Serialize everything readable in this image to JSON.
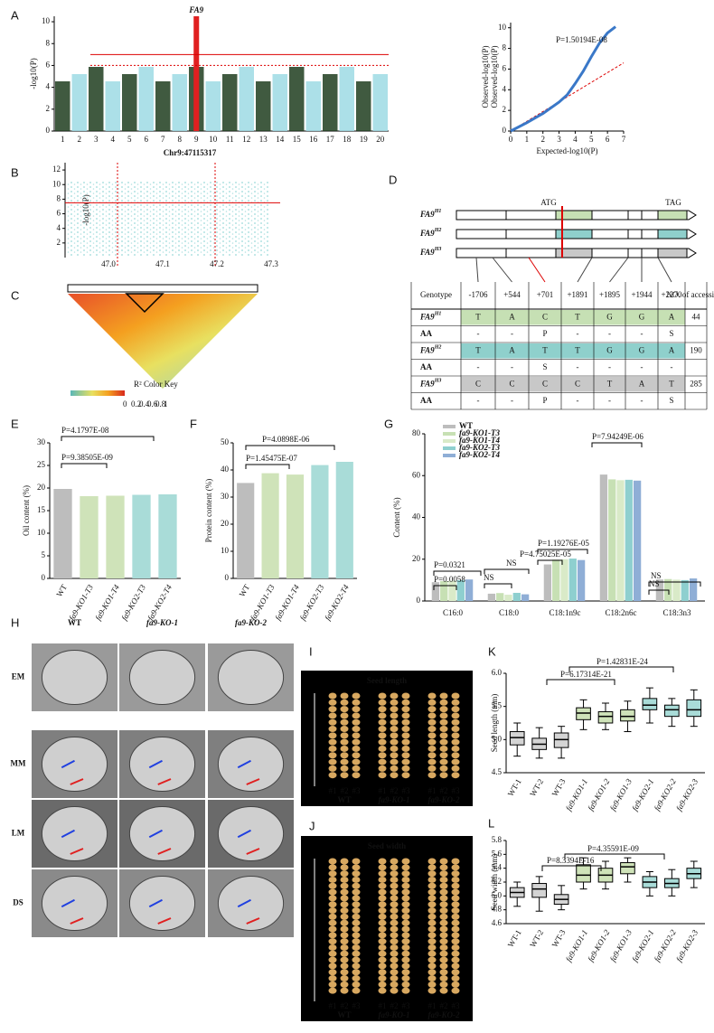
{
  "panel_labels": [
    "A",
    "B",
    "C",
    "D",
    "E",
    "F",
    "G",
    "H",
    "I",
    "J",
    "K",
    "L"
  ],
  "manhattan": {
    "gene": "FA9",
    "ylabel": "-log10(P)",
    "ylim": [
      0,
      10.5
    ],
    "yticks": [
      0,
      2,
      4,
      6,
      8,
      10
    ],
    "chromosomes": [
      "1",
      "2",
      "3",
      "4",
      "5",
      "6",
      "7",
      "8",
      "9",
      "10",
      "11",
      "12",
      "13",
      "14",
      "15",
      "16",
      "17",
      "18",
      "19",
      "20"
    ],
    "position": "Chr9:47115317",
    "thresholds": [
      7,
      6
    ]
  },
  "qq": {
    "annotation": "P=1.50194E-08",
    "xlabel": "Expected-log10(P)",
    "ylabel": "Observed-log10(P)",
    "xlim": [
      0,
      7
    ],
    "ylim": [
      0,
      10.5
    ],
    "xticks": [
      0,
      1,
      2,
      3,
      4,
      5,
      6,
      7
    ],
    "yticks": [
      0,
      2,
      4,
      6,
      8,
      10
    ],
    "x": [
      0,
      1,
      2,
      3,
      3.5,
      4,
      4.5,
      5,
      5.5,
      6,
      6.5
    ],
    "y": [
      0,
      0.8,
      1.7,
      2.8,
      3.5,
      4.6,
      5.8,
      7.2,
      8.5,
      9.5,
      10.1
    ],
    "expected": {
      "x": [
        0,
        7
      ],
      "y": [
        0,
        6.6
      ]
    }
  },
  "regional": {
    "ylabel": "-log10(P)",
    "ylim": [
      0,
      13
    ],
    "yticks": [
      2,
      4,
      6,
      8,
      10,
      12
    ],
    "xlim": [
      46.92,
      47.3
    ],
    "xticks": [
      {
        "value": 47,
        "label": "47.0"
      },
      47.1,
      47.2,
      47.3
    ],
    "threshold": 7.5
  },
  "ld": {
    "key_title": "R² Color Key",
    "key_ticks": [
      0,
      0.2,
      0.4,
      0.6,
      0.8,
      1
    ]
  },
  "gene_model": {
    "start": "ATG",
    "stop": "TAG",
    "table": {
      "header": [
        "Genotype",
        "-1706",
        "+544",
        "+701",
        "+1891",
        "+1895",
        "+1944",
        "+2270",
        "NO. of accessions"
      ],
      "rows": [
        {
          "name": "FA9",
          "sup": "H1",
          "color": "#c6e0b4",
          "cells": [
            "T",
            "A",
            "C",
            "T",
            "G",
            "G",
            "A"
          ],
          "count": 44
        },
        {
          "name": "AA",
          "cells": [
            "-",
            "-",
            "P",
            "-",
            "-",
            "-",
            "S"
          ]
        },
        {
          "name": "FA9",
          "sup": "H2",
          "color": "#8fd0cc",
          "cells": [
            "T",
            "A",
            "T",
            "T",
            "G",
            "G",
            "A"
          ],
          "count": 190
        },
        {
          "name": "AA",
          "cells": [
            "-",
            "-",
            "S",
            "-",
            "-",
            "-",
            "-"
          ],
          "red_cell": 2
        },
        {
          "name": "FA9",
          "sup": "H3",
          "color": "#c8c8c8",
          "cells": [
            "C",
            "C",
            "C",
            "C",
            "T",
            "A",
            "T"
          ],
          "count": 285
        },
        {
          "name": "AA",
          "cells": [
            "-",
            "-",
            "P",
            "-",
            "-",
            "-",
            "S"
          ]
        }
      ]
    }
  },
  "oil": {
    "type": "bar",
    "ylabel": "Oil content (%)",
    "ylim": [
      0,
      30
    ],
    "yticks": [
      0,
      5,
      10,
      15,
      20,
      25,
      30
    ],
    "categories": [
      "WT",
      "fa9-KO1-T3",
      "fa9-KO1-T4",
      "fa9-KO2-T3",
      "fa9-KO2-T4"
    ],
    "values": [
      19.8,
      18.2,
      18.3,
      18.5,
      18.6
    ],
    "colors": [
      "#bdbdbd",
      "#cfe3b9",
      "#cfe3b9",
      "#a9dcd8",
      "#a9dcd8"
    ],
    "annotations": [
      "P=4.1797E-08",
      "P=9.38505E-09"
    ]
  },
  "protein": {
    "type": "bar",
    "ylabel": "Protein content (%)",
    "ylim": [
      0,
      50
    ],
    "yticks": [
      0,
      10,
      20,
      30,
      40,
      50
    ],
    "categories": [
      "WT",
      "fa9-KO1-T3",
      "fa9-KO1-T4",
      "fa9-KO2-T3",
      "fa9-KO2-T4"
    ],
    "values": [
      35.2,
      38.8,
      38.3,
      41.8,
      43.0
    ],
    "colors": [
      "#bdbdbd",
      "#cfe3b9",
      "#cfe3b9",
      "#a9dcd8",
      "#a9dcd8"
    ],
    "annotations": [
      "P=4.0898E-06",
      "P=1.45475E-07"
    ]
  },
  "fatty": {
    "type": "bar",
    "ylabel": "Content (%)",
    "ylim": [
      0,
      80
    ],
    "yticks": [
      0,
      20,
      40,
      60,
      80
    ],
    "categories": [
      "C16:0",
      "C18:0",
      "C18:1n9c",
      "C18:2n6c",
      "C18:3n3"
    ],
    "series": [
      {
        "name": "WT",
        "color": "#bdbdbd",
        "values": [
          9.0,
          3.5,
          17.5,
          60.5,
          10.3
        ]
      },
      {
        "name": "fa9-KO1-T3",
        "color": "#c7e0b4",
        "values": [
          9.5,
          3.8,
          19.8,
          58.2,
          10.5
        ]
      },
      {
        "name": "fa9-KO1-T4",
        "color": "#d9eac8",
        "values": [
          9.7,
          3.0,
          20.0,
          57.8,
          10.2
        ]
      },
      {
        "name": "fa9-KO2-T3",
        "color": "#8ecfcf",
        "values": [
          10.0,
          3.9,
          20.3,
          58.0,
          10.0
        ]
      },
      {
        "name": "fa9-KO2-T4",
        "color": "#8faed6",
        "values": [
          10.3,
          3.2,
          19.6,
          57.6,
          10.8
        ]
      }
    ],
    "annotations": [
      "P=0.0321",
      "P=0.0058",
      "NS",
      "NS",
      "P=1.19276E-05",
      "P=4.75025E-05",
      "P=7.94249E-06",
      "NS",
      "NS"
    ]
  },
  "tem": {
    "columns": [
      "WT",
      "fa9-KO-1",
      "fa9-KO-2"
    ],
    "rows": [
      "EM",
      "MM",
      "LM",
      "DS"
    ]
  },
  "seed_length_img": {
    "title": "Seed length",
    "lines": [
      "#1",
      "#2",
      "#3"
    ],
    "groups": [
      "WT",
      "fa9-KO-1",
      "fa9-KO-2"
    ]
  },
  "seed_width_img": {
    "title": "Seed width",
    "lines": [
      "#1",
      "#2",
      "#3"
    ],
    "groups": [
      "WT",
      "fa9-KO-1",
      "fa9-KO-2"
    ]
  },
  "length_box": {
    "type": "box",
    "ylabel": "Seed length (mm)",
    "ylim": [
      4.5,
      6.0
    ],
    "yticks": [
      4.5,
      {
        "value": 5,
        "label": "5.0"
      },
      5.5,
      {
        "value": 6,
        "label": "6.0"
      }
    ],
    "categories": [
      "WT-1",
      "WT-2",
      "WT-3",
      "fa9-KO1-1",
      "fa9-KO1-2",
      "fa9-KO1-3",
      "fa9-KO2-1",
      "fa9-KO2-2",
      "fa9-KO2-3"
    ],
    "colors": [
      "#d4d4d4",
      "#d4d4d4",
      "#d4d4d4",
      "#cfe3b9",
      "#cfe3b9",
      "#cfe3b9",
      "#a9dcd8",
      "#a9dcd8",
      "#a9dcd8"
    ],
    "min": [
      4.75,
      4.72,
      4.72,
      5.15,
      5.15,
      5.12,
      5.25,
      5.2,
      5.2
    ],
    "q1": [
      4.92,
      4.85,
      4.88,
      5.3,
      5.25,
      5.28,
      5.45,
      5.35,
      5.35
    ],
    "median": [
      5.03,
      4.93,
      5.0,
      5.4,
      5.35,
      5.35,
      5.52,
      5.45,
      5.45
    ],
    "q3": [
      5.12,
      5.02,
      5.1,
      5.48,
      5.42,
      5.45,
      5.62,
      5.52,
      5.6
    ],
    "max": [
      5.25,
      5.18,
      5.2,
      5.6,
      5.55,
      5.58,
      5.78,
      5.62,
      5.75
    ],
    "annotations": [
      "P=1.42831E-24",
      "P=6.17314E-21"
    ]
  },
  "width_box": {
    "type": "box",
    "ylabel": "Seed width (mm)",
    "ylim": [
      4.6,
      5.8
    ],
    "yticks": [
      4.6,
      4.8,
      {
        "value": 5,
        "label": "5.0"
      },
      5.2,
      5.4,
      5.6,
      5.8
    ],
    "categories": [
      "WT-1",
      "WT-2",
      "WT-3",
      "fa9-KO1-1",
      "fa9-KO1-2",
      "fa9-KO1-3",
      "fa9-KO2-1",
      "fa9-KO2-2",
      "fa9-KO2-3"
    ],
    "colors": [
      "#d4d4d4",
      "#d4d4d4",
      "#d4d4d4",
      "#cfe3b9",
      "#cfe3b9",
      "#cfe3b9",
      "#a9dcd8",
      "#a9dcd8",
      "#a9dcd8"
    ],
    "min": [
      4.85,
      4.78,
      4.8,
      5.1,
      5.1,
      5.2,
      5.0,
      5.0,
      5.12
    ],
    "q1": [
      4.98,
      4.98,
      4.88,
      5.2,
      5.2,
      5.32,
      5.12,
      5.12,
      5.25
    ],
    "median": [
      5.05,
      5.1,
      4.95,
      5.3,
      5.3,
      5.42,
      5.2,
      5.18,
      5.32
    ],
    "q3": [
      5.12,
      5.18,
      5.02,
      5.45,
      5.4,
      5.48,
      5.28,
      5.25,
      5.4
    ],
    "max": [
      5.2,
      5.28,
      5.15,
      5.55,
      5.5,
      5.55,
      5.35,
      5.38,
      5.5
    ],
    "annotations": [
      "P=4.35591E-09",
      "P=8.3394E-16"
    ]
  }
}
